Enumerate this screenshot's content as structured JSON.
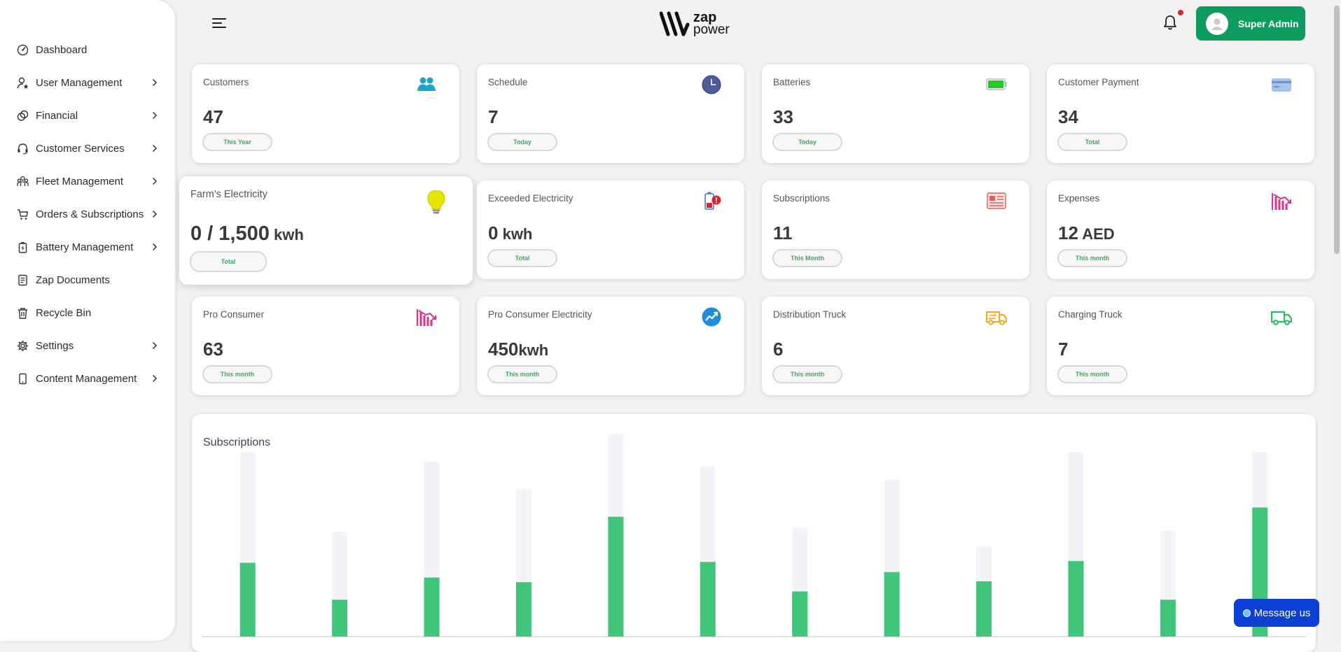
{
  "sidebar": {
    "items": [
      {
        "label": "Dashboard",
        "icon": "gauge-icon",
        "has_children": false
      },
      {
        "label": "User Management",
        "icon": "user-star-icon",
        "has_children": true
      },
      {
        "label": "Financial",
        "icon": "coins-icon",
        "has_children": true
      },
      {
        "label": "Customer Services",
        "icon": "headset-icon",
        "has_children": true
      },
      {
        "label": "Fleet Management",
        "icon": "group-icon",
        "has_children": true
      },
      {
        "label": "Orders & Subscriptions",
        "icon": "cart-icon",
        "has_children": true
      },
      {
        "label": "Battery Management",
        "icon": "battery-icon",
        "has_children": true
      },
      {
        "label": "Zap Documents",
        "icon": "document-icon",
        "has_children": false
      },
      {
        "label": "Recycle Bin",
        "icon": "trash-icon",
        "has_children": false
      },
      {
        "label": "Settings",
        "icon": "gear-icon",
        "has_children": true
      },
      {
        "label": "Content Management",
        "icon": "phone-icon",
        "has_children": true
      }
    ]
  },
  "header": {
    "logo_top": "zap",
    "logo_bottom": "power",
    "admin_label": "Super Admin",
    "has_notification": true
  },
  "cards": [
    {
      "title": "Customers",
      "value": "47",
      "unit": "",
      "period": "This Year",
      "icon": "users-icon",
      "icon_color": "#1aa6c9"
    },
    {
      "title": "Schedule",
      "value": "7",
      "unit": "",
      "period": "Today",
      "icon": "clock-icon",
      "icon_color": "#4e5a9a"
    },
    {
      "title": "Batteries",
      "value": "33",
      "unit": "",
      "period": "Today",
      "icon": "battery-full-icon",
      "icon_color": "#22cc22"
    },
    {
      "title": "Customer Payment",
      "value": "34",
      "unit": "",
      "period": "Total",
      "icon": "credit-card-icon",
      "icon_color": "#a9c4ea"
    },
    {
      "title": "Farm's Electricity",
      "value": "0 / 1,500",
      "unit": " kwh",
      "period": "Total",
      "icon": "lightbulb-icon",
      "icon_color": "#e6e600"
    },
    {
      "title": "Exceeded Electricity",
      "value": "0",
      "unit": " kwh",
      "period": "Total",
      "icon": "battery-alert-icon",
      "icon_color": "#d9232d"
    },
    {
      "title": "Subscriptions",
      "value": "11",
      "unit": "",
      "period": "This Month",
      "icon": "newspaper-icon",
      "icon_color": "#e85a5a"
    },
    {
      "title": "Expenses",
      "value": "12",
      "unit": " AED",
      "period": "This month",
      "icon": "chart-down-icon",
      "icon_color": "#d6338f"
    },
    {
      "title": "Pro Consumer",
      "value": "63",
      "unit": "",
      "period": "This month",
      "icon": "chart-down-icon",
      "icon_color": "#d6338f"
    },
    {
      "title": "Pro Consumer Electricity",
      "value": "450",
      "unit": "kwh",
      "period": "This month",
      "icon": "trend-up-icon",
      "icon_color": "#1d8fd8"
    },
    {
      "title": "Distribution Truck",
      "value": "6",
      "unit": "",
      "period": "This month",
      "icon": "truck-exchange-icon",
      "icon_color": "#f5a623"
    },
    {
      "title": "Charging Truck",
      "value": "7",
      "unit": "",
      "period": "This month",
      "icon": "truck-icon",
      "icon_color": "#2fb867"
    }
  ],
  "chart_data": {
    "type": "bar",
    "title": "Subscriptions",
    "categories": [
      "",
      "",
      "",
      "",
      "",
      "",
      "",
      "",
      "",
      "",
      "",
      ""
    ],
    "series": [
      {
        "values": [
          8,
          4,
          6.4,
          5.9,
          13,
          8.1,
          4.9,
          7,
          6,
          8.2,
          4,
          14
        ]
      },
      {
        "values": [
          20,
          11.4,
          19,
          16,
          22,
          18.5,
          11.8,
          17,
          9.8,
          20,
          11.5,
          20
        ]
      }
    ],
    "ylim": [
      0,
      22
    ],
    "colors": {
      "value": "#40c57a",
      "track": "#f2f4f8"
    }
  },
  "message_button": "Message us"
}
